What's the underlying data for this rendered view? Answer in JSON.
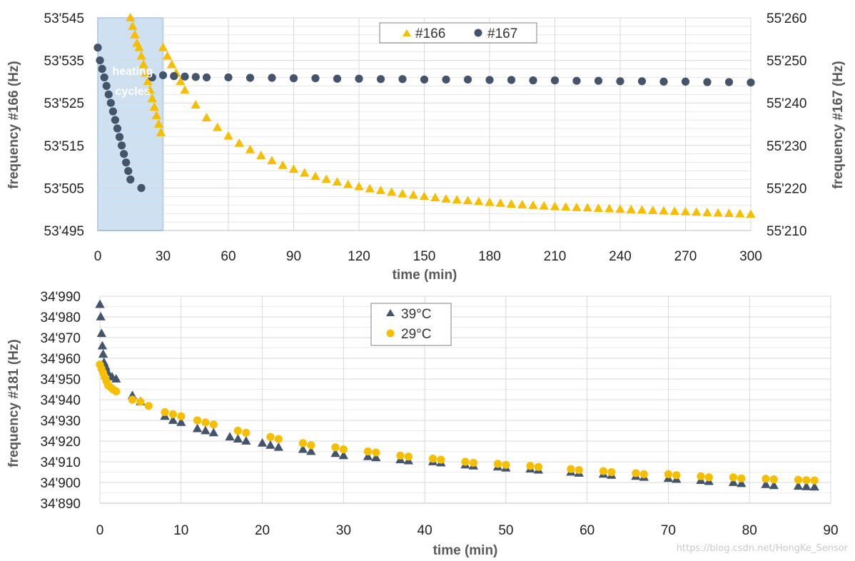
{
  "colors": {
    "gold": "#F5BE00",
    "navy": "#44546A",
    "grid": "#D9D9D9",
    "heating_fill": "#BDD7EE",
    "heating_stroke": "#5B9BD5"
  },
  "watermark": "https://blog.csdn.net/HongKe_Sensor",
  "chart_data": [
    {
      "type": "scatter",
      "title": "",
      "xlabel": "time (min)",
      "ylabel": "frequency #166 (Hz)",
      "y2label": "frequency #167 (Hz)",
      "xlim": [
        0,
        300
      ],
      "ylim": [
        53495,
        53545
      ],
      "y2lim": [
        55210,
        55260
      ],
      "xticks": [
        "0",
        "30",
        "60",
        "90",
        "120",
        "150",
        "180",
        "210",
        "240",
        "270",
        "300"
      ],
      "yticks": [
        "53'495",
        "53'505",
        "53'515",
        "53'525",
        "53'535",
        "53'545"
      ],
      "y2ticks": [
        "55'210",
        "55'220",
        "55'230",
        "55'240",
        "55'250",
        "55'260"
      ],
      "grid": true,
      "legend_position": "top-center",
      "annotation": {
        "text_line1": "heating",
        "text_line2": "cycles",
        "x_range": [
          0,
          30
        ]
      },
      "series": [
        {
          "name": "#166",
          "marker": "triangle",
          "color": "#F5BE00",
          "axis": "left",
          "x": [
            15,
            16,
            17,
            18,
            19,
            20,
            21,
            22,
            23,
            24,
            25,
            26,
            27,
            28,
            29,
            30,
            32,
            34,
            36,
            38,
            40,
            45,
            50,
            55,
            60,
            65,
            70,
            75,
            80,
            85,
            90,
            95,
            100,
            105,
            110,
            115,
            120,
            125,
            130,
            135,
            140,
            145,
            150,
            155,
            160,
            165,
            170,
            175,
            180,
            185,
            190,
            195,
            200,
            205,
            210,
            215,
            220,
            225,
            230,
            235,
            240,
            245,
            250,
            255,
            260,
            265,
            270,
            275,
            280,
            285,
            290,
            295,
            300
          ],
          "y": [
            53545,
            53543,
            53541,
            53539,
            53538,
            53536,
            53534,
            53532,
            53530,
            53528,
            53526,
            53524,
            53522,
            53520,
            53518,
            53538,
            53536,
            53534,
            53532,
            53530,
            53528,
            53524.5,
            53521.5,
            53519.2,
            53517.2,
            53515.5,
            53514,
            53512.6,
            53511.4,
            53510.3,
            53509.4,
            53508.5,
            53507.7,
            53507,
            53506.4,
            53505.8,
            53505.3,
            53504.8,
            53504.4,
            53504,
            53503.6,
            53503.3,
            53503,
            53502.7,
            53502.4,
            53502.2,
            53502,
            53501.8,
            53501.6,
            53501.4,
            53501.2,
            53501.05,
            53500.9,
            53500.75,
            53500.6,
            53500.5,
            53500.4,
            53500.3,
            53500.2,
            53500.1,
            53500,
            53499.9,
            53499.8,
            53499.7,
            53499.6,
            53499.5,
            53499.4,
            53499.3,
            53499.2,
            53499.1,
            53499,
            53498.9,
            53498.8
          ]
        },
        {
          "name": "#167",
          "marker": "circle",
          "color": "#44546A",
          "axis": "right",
          "x": [
            0,
            1,
            2,
            3,
            4,
            5,
            6,
            7,
            8,
            9,
            10,
            11,
            12,
            13,
            14,
            15,
            20,
            25,
            30,
            35,
            40,
            45,
            50,
            60,
            70,
            80,
            90,
            100,
            110,
            120,
            130,
            140,
            150,
            160,
            170,
            180,
            190,
            200,
            210,
            220,
            230,
            240,
            250,
            260,
            270,
            280,
            290,
            300
          ],
          "y": [
            55253,
            55250,
            55248,
            55246,
            55244,
            55242,
            55240,
            55238,
            55236,
            55234,
            55232,
            55230,
            55228,
            55226,
            55224,
            55222,
            55220,
            55246,
            55246.5,
            55246.3,
            55246.2,
            55246.1,
            55246,
            55246,
            55245.9,
            55245.9,
            55245.8,
            55245.8,
            55245.7,
            55245.7,
            55245.6,
            55245.6,
            55245.5,
            55245.5,
            55245.5,
            55245.4,
            55245.4,
            55245.3,
            55245.3,
            55245.2,
            55245.2,
            55245.1,
            55245.1,
            55245,
            55245,
            55244.9,
            55244.9,
            55244.8
          ]
        }
      ]
    },
    {
      "type": "scatter",
      "title": "",
      "xlabel": "time (min)",
      "ylabel": "frequency #181 (Hz)",
      "xlim": [
        0,
        90
      ],
      "ylim": [
        34890,
        34990
      ],
      "xticks": [
        "0",
        "10",
        "20",
        "30",
        "40",
        "50",
        "60",
        "70",
        "80",
        "90"
      ],
      "yticks": [
        "34'890",
        "34'900",
        "34'910",
        "34'920",
        "34'930",
        "34'940",
        "34'950",
        "34'960",
        "34'970",
        "34'980",
        "34'990"
      ],
      "grid": true,
      "legend_position": "top-center",
      "series": [
        {
          "name": "39°C",
          "marker": "triangle",
          "color": "#44546A",
          "x": [
            0,
            0.1,
            0.2,
            0.3,
            0.4,
            0.5,
            0.7,
            1,
            1.5,
            2,
            4,
            5,
            8,
            9,
            10,
            12,
            13,
            14,
            16,
            17,
            18,
            20,
            21,
            22,
            25,
            26,
            29,
            30,
            33,
            34,
            37,
            38,
            41,
            42,
            45,
            46,
            49,
            50,
            53,
            54,
            58,
            59,
            62,
            63,
            66,
            67,
            70,
            71,
            74,
            75,
            78,
            79,
            82,
            83,
            86,
            87,
            88
          ],
          "y": [
            34986,
            34980,
            34972,
            34966,
            34962,
            34958,
            34956,
            34953,
            34951,
            34950,
            34942,
            34939,
            34932,
            34930,
            34929,
            34926,
            34925,
            34924,
            34922,
            34921,
            34920,
            34919,
            34918,
            34917,
            34916,
            34915,
            34914,
            34913,
            34912.5,
            34912,
            34911,
            34910.5,
            34910,
            34909.5,
            34908.5,
            34908,
            34907.5,
            34907,
            34906.5,
            34906,
            34905,
            34904.5,
            34904,
            34903.5,
            34903,
            34902.5,
            34902,
            34901.5,
            34901,
            34900.5,
            34900,
            34899.5,
            34899,
            34898.5,
            34898.2,
            34898,
            34897.8
          ]
        },
        {
          "name": "29°C",
          "marker": "circle",
          "color": "#F5BE00",
          "x": [
            0,
            0.2,
            0.4,
            0.6,
            0.8,
            1,
            1.3,
            1.6,
            2,
            4,
            5,
            6,
            8,
            9,
            10,
            12,
            13,
            14,
            17,
            18,
            21,
            22,
            25,
            26,
            29,
            30,
            33,
            34,
            37,
            38,
            41,
            42,
            45,
            46,
            49,
            50,
            53,
            54,
            58,
            59,
            62,
            63,
            66,
            67,
            70,
            71,
            74,
            75,
            78,
            79,
            82,
            83,
            86,
            87,
            88
          ],
          "y": [
            34957,
            34955,
            34953,
            34951,
            34949,
            34947,
            34946,
            34945,
            34944,
            34940,
            34939,
            34937,
            34934,
            34933,
            34932,
            34930,
            34929,
            34928,
            34925,
            34924,
            34922,
            34921,
            34919,
            34918,
            34917,
            34916,
            34915,
            34914.5,
            34913,
            34912.5,
            34911.5,
            34911,
            34910,
            34909.5,
            34909,
            34908.5,
            34908,
            34907.5,
            34906.5,
            34906,
            34905.5,
            34905,
            34904.5,
            34904,
            34904,
            34903.5,
            34903,
            34902.5,
            34902.5,
            34902,
            34901.8,
            34901.5,
            34901.3,
            34901.1,
            34901
          ]
        }
      ]
    }
  ]
}
